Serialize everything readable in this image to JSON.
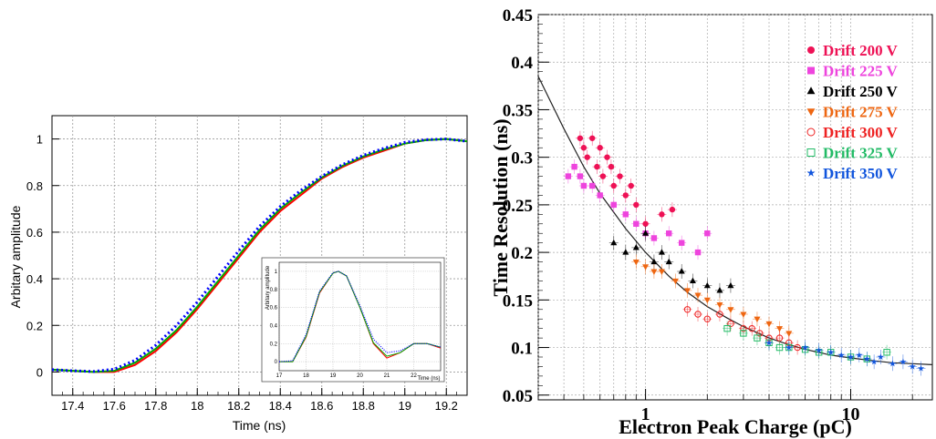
{
  "chart_data": [
    {
      "type": "line",
      "title": "",
      "xlabel": "Time (ns)",
      "ylabel": "Arbitary amplitude",
      "xlim": [
        17.3,
        19.3
      ],
      "ylim": [
        -0.1,
        1.1
      ],
      "grid": true,
      "x_ticks": [
        "17.4",
        "17.6",
        "17.8",
        "18",
        "18.2",
        "18.4",
        "18.6",
        "18.8",
        "19",
        "19.2"
      ],
      "y_ticks": [
        "0",
        "0.2",
        "0.4",
        "0.6",
        "0.8",
        "1"
      ],
      "series": [
        {
          "color": "#ff0000",
          "style": "solid",
          "x": [
            17.3,
            17.4,
            17.5,
            17.6,
            17.7,
            17.8,
            17.9,
            18.0,
            18.1,
            18.2,
            18.3,
            18.4,
            18.5,
            18.6,
            18.7,
            18.8,
            18.9,
            19.0,
            19.1,
            19.2,
            19.3
          ],
          "y": [
            0.01,
            0.005,
            0.0,
            0.0,
            0.03,
            0.09,
            0.17,
            0.27,
            0.38,
            0.49,
            0.6,
            0.69,
            0.76,
            0.83,
            0.88,
            0.92,
            0.95,
            0.98,
            0.995,
            1.0,
            0.99
          ]
        },
        {
          "color": "#00aa00",
          "style": "solid",
          "x": [
            17.3,
            17.4,
            17.5,
            17.6,
            17.7,
            17.8,
            17.9,
            18.0,
            18.1,
            18.2,
            18.3,
            18.4,
            18.5,
            18.6,
            18.7,
            18.8,
            18.9,
            19.0,
            19.1,
            19.2,
            19.3
          ],
          "y": [
            0.01,
            0.005,
            0.0,
            0.005,
            0.04,
            0.1,
            0.18,
            0.28,
            0.39,
            0.5,
            0.61,
            0.7,
            0.77,
            0.835,
            0.885,
            0.925,
            0.955,
            0.98,
            0.995,
            1.0,
            0.99
          ]
        },
        {
          "color": "#0000ff",
          "style": "dotted",
          "x": [
            17.3,
            17.4,
            17.5,
            17.6,
            17.7,
            17.8,
            17.9,
            18.0,
            18.1,
            18.2,
            18.3,
            18.4,
            18.5,
            18.6,
            18.7,
            18.8,
            18.9,
            19.0,
            19.1,
            19.2,
            19.3
          ],
          "y": [
            0.01,
            0.005,
            0.002,
            0.012,
            0.05,
            0.115,
            0.2,
            0.3,
            0.41,
            0.52,
            0.625,
            0.71,
            0.78,
            0.84,
            0.89,
            0.93,
            0.96,
            0.985,
            0.997,
            1.0,
            0.99
          ]
        }
      ],
      "inset": {
        "xlabel": "Time (ns)",
        "ylabel": "Arbitary amplitude",
        "xlim": [
          17,
          23
        ],
        "ylim": [
          -0.1,
          1.1
        ],
        "x_ticks": [
          "17",
          "18",
          "19",
          "20",
          "21",
          "22"
        ],
        "y_ticks": [
          "0",
          "0.2",
          "0.4",
          "0.6",
          "0.8",
          "1"
        ],
        "series": [
          {
            "color": "#ff0000",
            "style": "solid",
            "x": [
              17,
              17.5,
              18,
              18.5,
              19,
              19.2,
              19.5,
              20,
              20.5,
              21,
              21.5,
              22,
              22.5,
              23
            ],
            "y": [
              0,
              0.0,
              0.27,
              0.76,
              0.98,
              1.0,
              0.95,
              0.6,
              0.2,
              0.04,
              0.1,
              0.2,
              0.2,
              0.15
            ]
          },
          {
            "color": "#00aa00",
            "style": "solid",
            "x": [
              17,
              17.5,
              18,
              18.5,
              19,
              19.2,
              19.5,
              20,
              20.5,
              21,
              21.5,
              22,
              22.5,
              23
            ],
            "y": [
              0,
              0.0,
              0.28,
              0.77,
              0.98,
              1.0,
              0.95,
              0.6,
              0.21,
              0.06,
              0.1,
              0.2,
              0.2,
              0.16
            ]
          },
          {
            "color": "#0000ff",
            "style": "dotted",
            "x": [
              17,
              17.5,
              18,
              18.5,
              19,
              19.2,
              19.5,
              20,
              20.5,
              21,
              21.5,
              22,
              22.5,
              23
            ],
            "y": [
              0,
              0.01,
              0.3,
              0.78,
              0.985,
              1.0,
              0.95,
              0.62,
              0.25,
              0.1,
              0.12,
              0.2,
              0.2,
              0.16
            ]
          }
        ]
      }
    },
    {
      "type": "scatter",
      "title": "",
      "xlabel": "Electron Peak Charge (pC)",
      "ylabel": "Time Resolution (ns)",
      "xscale": "log",
      "xlim": [
        0.3,
        25
      ],
      "ylim": [
        0.045,
        0.45
      ],
      "grid": true,
      "legend": "top-right",
      "x_ticks": [
        "1",
        "10"
      ],
      "y_ticks": [
        "0.05",
        "0.1",
        "0.15",
        "0.2",
        "0.25",
        "0.3",
        "0.35",
        "0.4",
        "0.45"
      ],
      "fit": {
        "x": [
          0.3,
          0.4,
          0.5,
          0.6,
          0.8,
          1.0,
          1.3,
          1.6,
          2.0,
          2.5,
          3,
          4,
          5,
          6,
          8,
          10,
          13,
          16,
          20,
          25
        ],
        "y": [
          0.385,
          0.33,
          0.29,
          0.262,
          0.225,
          0.2,
          0.175,
          0.158,
          0.143,
          0.131,
          0.122,
          0.11,
          0.103,
          0.098,
          0.092,
          0.089,
          0.086,
          0.084,
          0.083,
          0.082
        ]
      },
      "series": [
        {
          "name": "Drift 200 V",
          "color": "#ee1155",
          "marker": "circle",
          "x": [
            0.48,
            0.5,
            0.52,
            0.55,
            0.58,
            0.6,
            0.62,
            0.65,
            0.68,
            0.7,
            0.75,
            0.8,
            0.85,
            0.9,
            1.0,
            1.2,
            1.35
          ],
          "y": [
            0.32,
            0.31,
            0.3,
            0.32,
            0.29,
            0.31,
            0.28,
            0.3,
            0.29,
            0.27,
            0.28,
            0.26,
            0.27,
            0.25,
            0.23,
            0.24,
            0.245
          ]
        },
        {
          "name": "Drift 225 V",
          "color": "#ee44dd",
          "marker": "square",
          "x": [
            0.42,
            0.45,
            0.48,
            0.5,
            0.55,
            0.6,
            0.7,
            0.8,
            0.9,
            1.0,
            1.1,
            1.3,
            1.5,
            1.8,
            2.0
          ],
          "y": [
            0.28,
            0.29,
            0.28,
            0.27,
            0.27,
            0.26,
            0.25,
            0.24,
            0.23,
            0.22,
            0.215,
            0.22,
            0.21,
            0.2,
            0.22
          ]
        },
        {
          "name": "Drift 250 V",
          "color": "#000000",
          "marker": "triangle",
          "x": [
            0.7,
            0.8,
            0.9,
            1.0,
            1.1,
            1.2,
            1.3,
            1.5,
            1.7,
            2.0,
            2.3,
            2.6
          ],
          "y": [
            0.21,
            0.2,
            0.205,
            0.22,
            0.19,
            0.2,
            0.19,
            0.18,
            0.17,
            0.165,
            0.16,
            0.165
          ]
        },
        {
          "name": "Drift 275 V",
          "color": "#ee6611",
          "marker": "triangle-down",
          "x": [
            0.9,
            1.0,
            1.1,
            1.2,
            1.4,
            1.6,
            1.8,
            2.0,
            2.3,
            2.6,
            3.0,
            3.5,
            4.0,
            4.5,
            5.0
          ],
          "y": [
            0.19,
            0.185,
            0.18,
            0.18,
            0.17,
            0.16,
            0.155,
            0.15,
            0.145,
            0.14,
            0.135,
            0.13,
            0.125,
            0.12,
            0.115
          ]
        },
        {
          "name": "Drift 300 V",
          "color": "#ee2222",
          "marker": "circle-open",
          "x": [
            1.6,
            1.8,
            2.0,
            2.3,
            2.6,
            3.0,
            3.3,
            3.6,
            4.0,
            4.5,
            5.0,
            5.5
          ],
          "y": [
            0.14,
            0.135,
            0.13,
            0.135,
            0.125,
            0.12,
            0.12,
            0.115,
            0.11,
            0.11,
            0.105,
            0.1
          ]
        },
        {
          "name": "Drift 325 V",
          "color": "#22bb66",
          "marker": "square-open",
          "x": [
            2.5,
            3.0,
            3.5,
            4.0,
            4.5,
            5.0,
            6.0,
            7.0,
            8.0,
            10.0,
            12.0,
            15.0
          ],
          "y": [
            0.12,
            0.115,
            0.11,
            0.105,
            0.1,
            0.1,
            0.098,
            0.095,
            0.095,
            0.09,
            0.088,
            0.095
          ]
        },
        {
          "name": "Drift 350 V",
          "color": "#1155dd",
          "marker": "star",
          "x": [
            4.0,
            5.0,
            6.0,
            7.0,
            8.0,
            9.0,
            10.0,
            11.0,
            12.0,
            13.0,
            14.0,
            16.0,
            18.0,
            20.0,
            22.0
          ],
          "y": [
            0.105,
            0.1,
            0.1,
            0.097,
            0.095,
            0.092,
            0.09,
            0.092,
            0.088,
            0.085,
            0.09,
            0.083,
            0.085,
            0.08,
            0.078
          ]
        }
      ]
    }
  ]
}
